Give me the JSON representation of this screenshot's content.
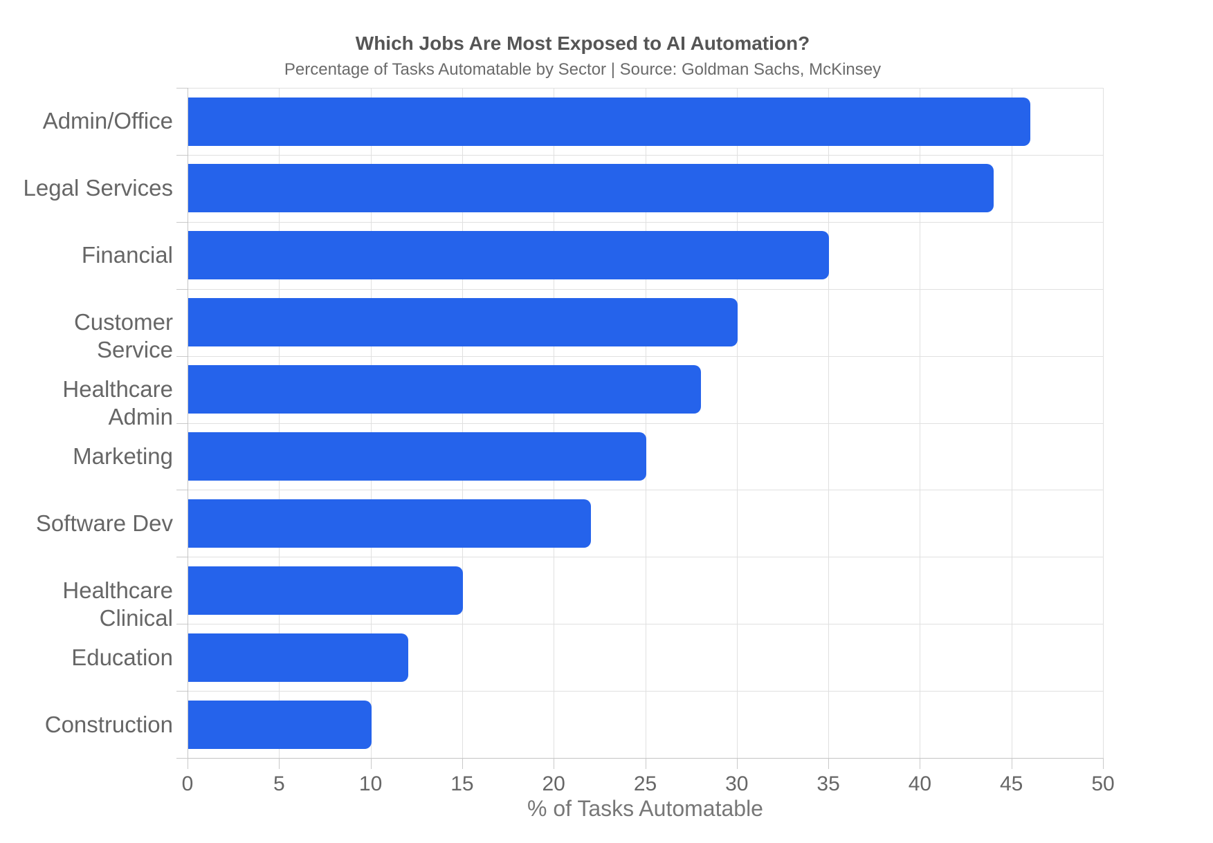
{
  "chart_data": {
    "type": "bar",
    "orientation": "horizontal",
    "title": "Which Jobs Are Most Exposed to AI Automation?",
    "subtitle": "Percentage of Tasks Automatable by Sector | Source: Goldman Sachs, McKinsey",
    "categories": [
      "Admin/Office",
      "Legal Services",
      "Financial",
      "Customer Service",
      "Healthcare Admin",
      "Marketing",
      "Software Dev",
      "Healthcare Clinical",
      "Education",
      "Construction"
    ],
    "values": [
      46,
      44,
      35,
      30,
      28,
      25,
      22,
      15,
      12,
      10
    ],
    "xlabel": "% of Tasks Automatable",
    "xlim": [
      0,
      50
    ],
    "xticks": [
      0,
      5,
      10,
      15,
      20,
      25,
      30,
      35,
      40,
      45,
      50
    ],
    "grid": true,
    "legend": false,
    "colors": {
      "bar": "#2563eb",
      "grid": "#e0e0e0",
      "axis_border": "#c4c4c4",
      "title_text": "#555555",
      "subtitle_text": "#6b6b6b",
      "tick_text": "#666666",
      "axis_label_text": "#777777",
      "background": "#ffffff"
    }
  }
}
